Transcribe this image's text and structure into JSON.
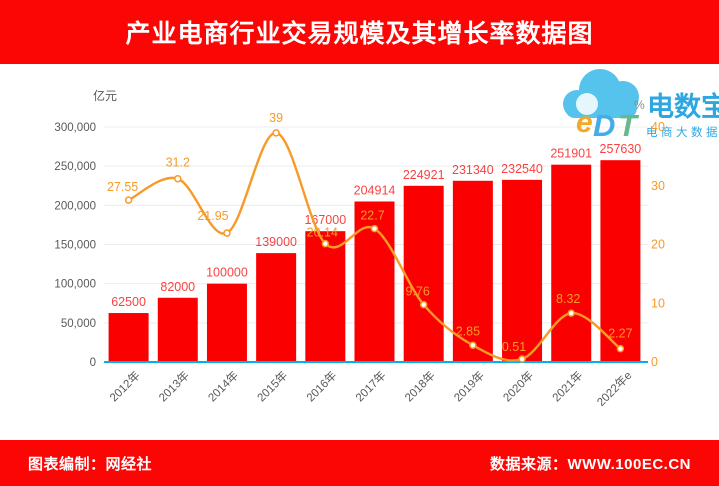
{
  "title": "产业电商行业交易规模及其增长率数据图",
  "footer": {
    "left": "图表编制：网经社",
    "right": "数据来源：WWW.100EC.CN"
  },
  "logo": {
    "cloud_text": "eDT",
    "name": "电数宝",
    "subtitle": "电商大数据库"
  },
  "chart_data": {
    "type": "bar",
    "categories": [
      "2012年",
      "2013年",
      "2014年",
      "2015年",
      "2016年",
      "2017年",
      "2018年",
      "2019年",
      "2020年",
      "2021年",
      "2022年e"
    ],
    "series": [
      {
        "name": "交易规模",
        "type": "bar",
        "axis": "left",
        "unit": "亿元",
        "values": [
          62500,
          82000,
          100000,
          139000,
          167000,
          204914,
          224921,
          231340,
          232540,
          251901,
          257630
        ]
      },
      {
        "name": "增长率",
        "type": "line",
        "axis": "right",
        "unit": "%",
        "values": [
          27.55,
          31.2,
          21.95,
          39,
          20.14,
          22.7,
          9.76,
          2.85,
          0.51,
          8.32,
          2.27
        ]
      }
    ],
    "left_axis": {
      "label": "亿元",
      "min": 0,
      "max": 300000,
      "step": 50000,
      "tick_labels": [
        "0",
        "50,000",
        "100,000",
        "150,000",
        "200,000",
        "250,000",
        "300,000"
      ]
    },
    "right_axis": {
      "label": "%",
      "min": 0,
      "max": 40,
      "step": 10,
      "tick_labels": [
        "0",
        "10",
        "20",
        "30",
        "40"
      ]
    },
    "grid": true,
    "legend_position": "none"
  },
  "colors": {
    "banner_red": "#fb0505",
    "bar_red": "#fb0000",
    "bar_label_red": "#fb4242",
    "line_orange": "#f79a28",
    "axis_gray": "#595959",
    "baseline_cyan": "#00b0f0",
    "grid_gray": "#ececec",
    "logo_blue": "#2ea7e0",
    "cloud_blue": "#55c3ec",
    "logo_e_orange": "#f5a728",
    "logo_d_blue": "#42ade8",
    "logo_t_green": "#64b98f"
  }
}
